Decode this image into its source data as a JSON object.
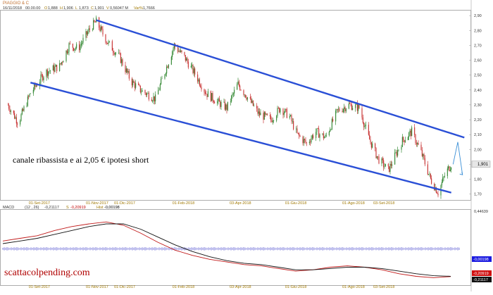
{
  "header": {
    "symbol": "PIAGGIO & C",
    "date": "16/11/2018",
    "time": "00.00.00",
    "open_label": "O",
    "open": "1,888",
    "high_label": "H",
    "high": "1,906",
    "low_label": "L",
    "low": "1,873",
    "close_label": "C",
    "close": "1,901",
    "volume_label": "V",
    "volume": "0,56047 M",
    "var_label": "Var%",
    "var": "1,7666"
  },
  "annotation": "canale ribassista e ai 2,05 € ipotesi short",
  "watermark": "scattacolpending.com",
  "last_price_label": "1,901",
  "chart_data": [
    {
      "type": "candlestick",
      "price_axis_ticks": [
        "2,90",
        "2,80",
        "2,70",
        "2,60",
        "2,50",
        "2,40",
        "2,30",
        "2,20",
        "2,10",
        "2,00",
        "1,90",
        "1,80",
        "1,70"
      ],
      "ylim": [
        1.67,
        2.92
      ],
      "date_ticks": [
        "01-Set-2017",
        "01-Nov-2017",
        "01-Dic-2017",
        "01-Feb-2018",
        "03-Apr-2018",
        "01-Giu-2018",
        "01-Ago-2018",
        "03-Set-2018"
      ],
      "ohlc_anchors": [
        [
          "2017-08-01",
          2.3
        ],
        [
          "2017-08-12",
          2.18
        ],
        [
          "2017-08-25",
          2.38
        ],
        [
          "2017-09-10",
          2.52
        ],
        [
          "2017-09-25",
          2.56
        ],
        [
          "2017-10-05",
          2.7
        ],
        [
          "2017-10-15",
          2.68
        ],
        [
          "2017-10-28",
          2.82
        ],
        [
          "2017-11-03",
          2.86
        ],
        [
          "2017-11-15",
          2.72
        ],
        [
          "2017-11-28",
          2.62
        ],
        [
          "2017-12-10",
          2.46
        ],
        [
          "2017-12-20",
          2.4
        ],
        [
          "2018-01-05",
          2.34
        ],
        [
          "2018-01-15",
          2.52
        ],
        [
          "2018-01-25",
          2.7
        ],
        [
          "2018-02-05",
          2.62
        ],
        [
          "2018-02-15",
          2.52
        ],
        [
          "2018-02-28",
          2.38
        ],
        [
          "2018-03-12",
          2.32
        ],
        [
          "2018-03-22",
          2.28
        ],
        [
          "2018-04-03",
          2.44
        ],
        [
          "2018-04-12",
          2.36
        ],
        [
          "2018-04-25",
          2.24
        ],
        [
          "2018-05-08",
          2.2
        ],
        [
          "2018-05-18",
          2.28
        ],
        [
          "2018-05-28",
          2.22
        ],
        [
          "2018-06-05",
          2.1
        ],
        [
          "2018-06-15",
          2.04
        ],
        [
          "2018-06-25",
          2.12
        ],
        [
          "2018-07-05",
          2.08
        ],
        [
          "2018-07-18",
          2.26
        ],
        [
          "2018-07-30",
          2.3
        ],
        [
          "2018-08-10",
          2.28
        ],
        [
          "2018-08-20",
          2.08
        ],
        [
          "2018-08-30",
          1.94
        ],
        [
          "2018-09-10",
          1.86
        ],
        [
          "2018-09-25",
          2.06
        ],
        [
          "2018-10-05",
          2.12
        ],
        [
          "2018-10-15",
          1.98
        ],
        [
          "2018-10-25",
          1.8
        ],
        [
          "2018-11-02",
          1.71
        ],
        [
          "2018-11-10",
          1.84
        ],
        [
          "2018-11-16",
          1.901
        ]
      ],
      "channel_upper": [
        [
          "2017-11-03",
          2.87
        ],
        [
          "2018-11-30",
          2.08
        ]
      ],
      "channel_lower": [
        [
          "2017-08-25",
          2.45
        ],
        [
          "2018-11-16",
          1.71
        ]
      ],
      "projection_arrow": [
        [
          "2018-11-18",
          1.9
        ],
        [
          "2018-11-23",
          2.05
        ],
        [
          "2018-11-28",
          1.83
        ]
      ]
    },
    {
      "type": "line",
      "title": "MACD",
      "params": "(12 , 26)",
      "series": [
        {
          "name": "MACD",
          "values": [
            0.06,
            0.08,
            0.1,
            0.14,
            0.17,
            0.19,
            0.205,
            0.18,
            0.12,
            0.05,
            -0.01,
            -0.05,
            -0.08,
            -0.1,
            -0.12,
            -0.13,
            -0.15,
            -0.17,
            -0.16,
            -0.14,
            -0.13,
            -0.14,
            -0.16,
            -0.19,
            -0.21,
            -0.22,
            -0.21117
          ]
        },
        {
          "name": "Signal",
          "label": "S",
          "values": [
            0.04,
            0.06,
            0.08,
            0.11,
            0.14,
            0.17,
            0.19,
            0.19,
            0.15,
            0.09,
            0.03,
            -0.02,
            -0.06,
            -0.09,
            -0.11,
            -0.12,
            -0.14,
            -0.16,
            -0.16,
            -0.15,
            -0.14,
            -0.14,
            -0.15,
            -0.17,
            -0.19,
            -0.205,
            -0.20919
          ]
        },
        {
          "name": "Hist",
          "label": "Hist",
          "values": [
            -0.00198
          ]
        }
      ],
      "legend": {
        "macd": "-0,21117",
        "signal": "-0,20919",
        "hist": "-0,00198"
      },
      "axis_top": "0,44639",
      "right_labels": [
        "-0,00198",
        "-0,20919",
        "-0,21117"
      ]
    }
  ]
}
